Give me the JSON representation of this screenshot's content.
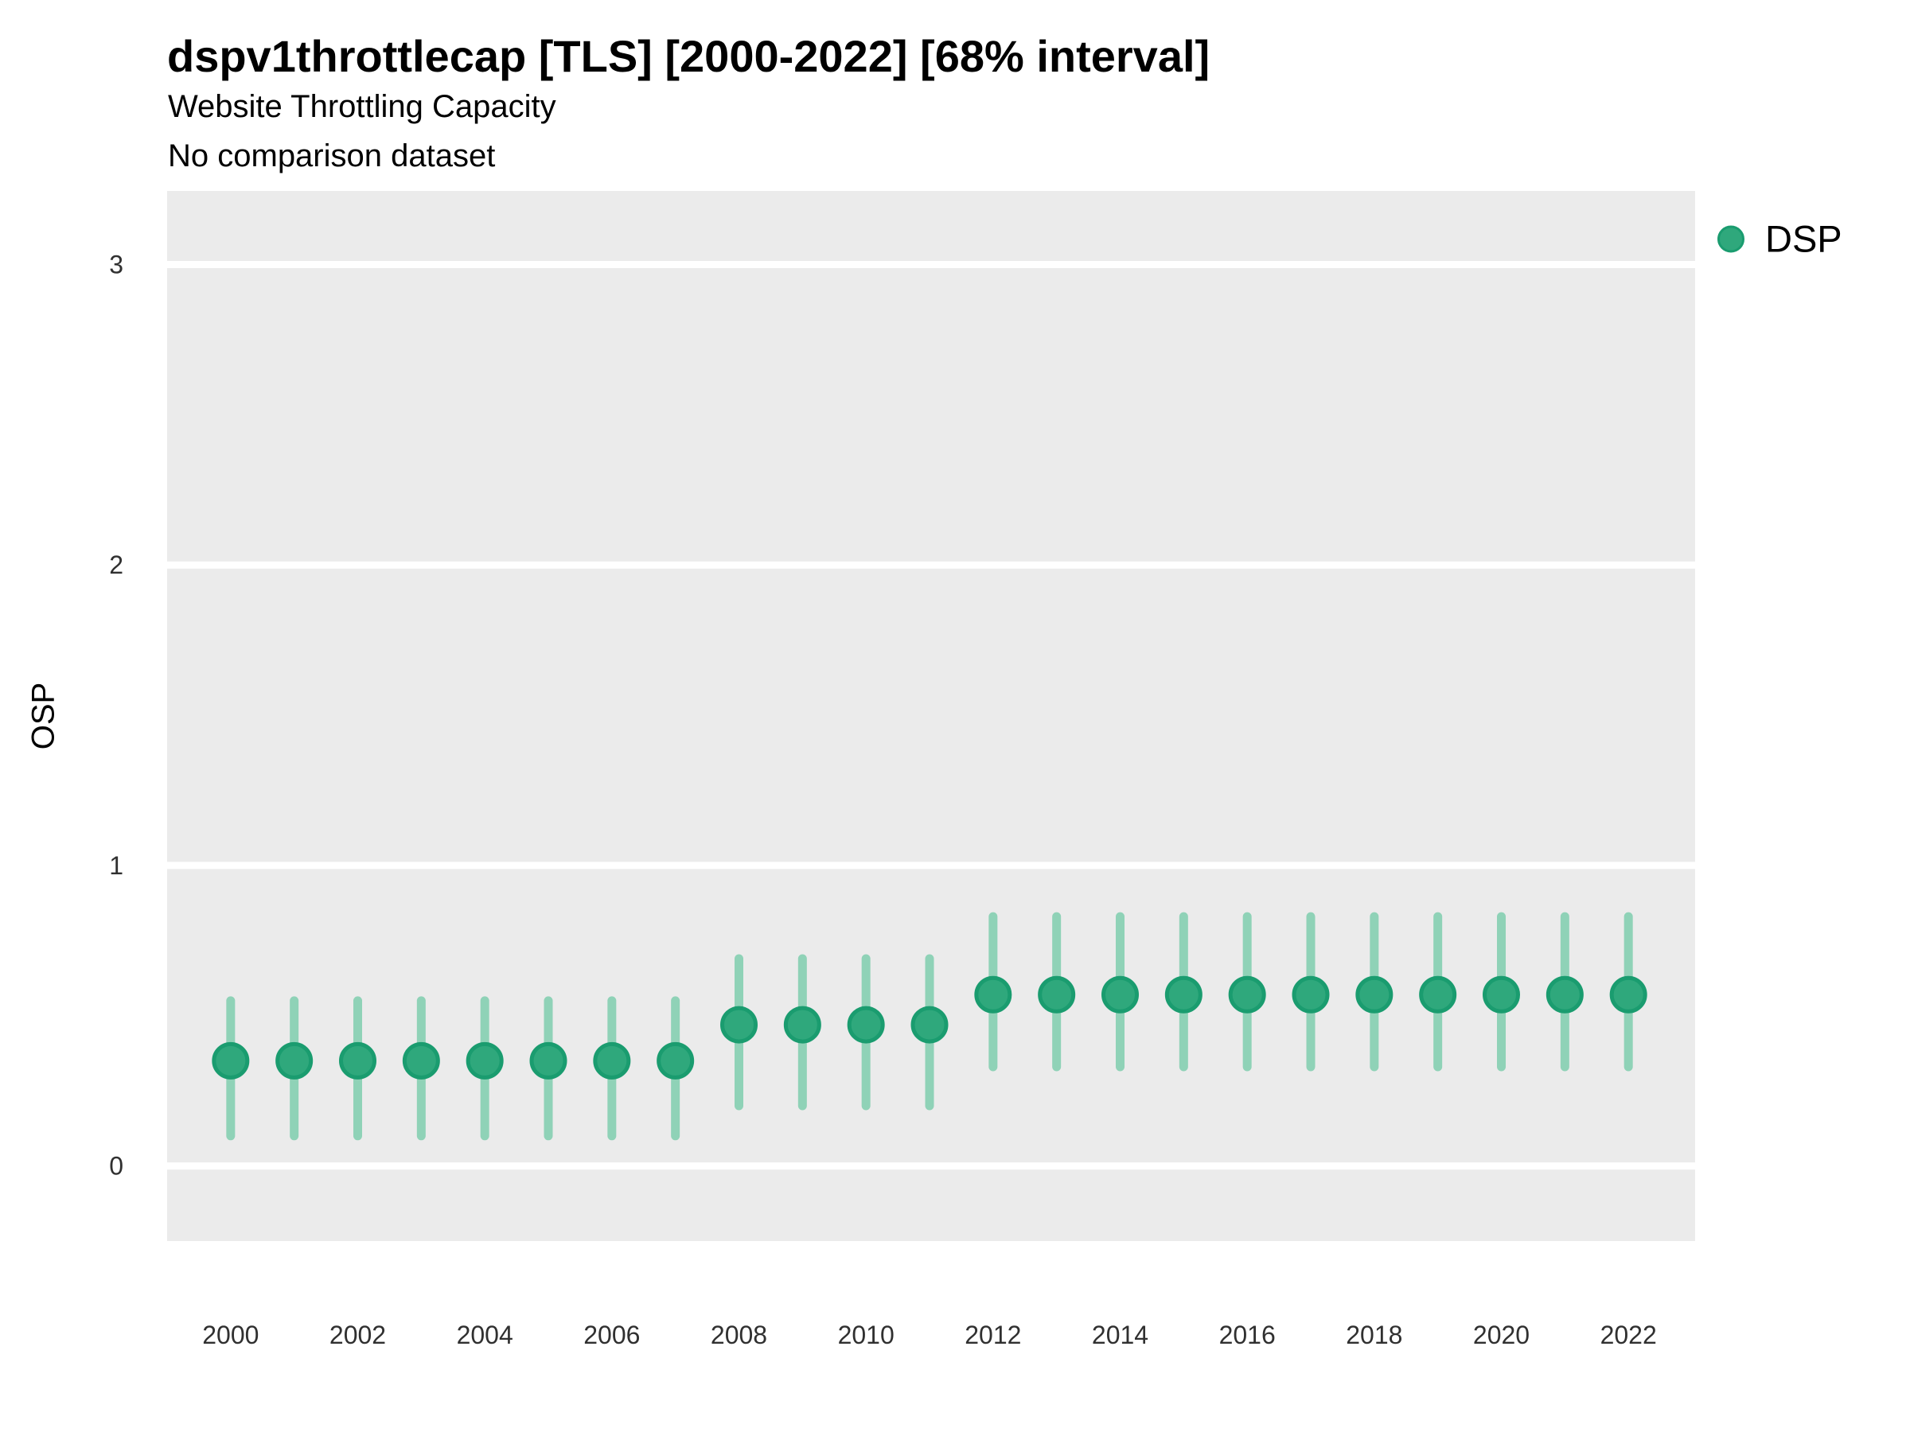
{
  "header": {
    "title": "dspv1throttlecap [TLS] [2000-2022] [68% interval]",
    "subtitle": "Website Throttling Capacity",
    "caption": "No comparison dataset"
  },
  "legend": {
    "items": [
      {
        "label": "DSP",
        "color": "#2fa87c",
        "stroke": "#1a9c6f"
      }
    ]
  },
  "chart_data": {
    "type": "scatter",
    "title": "dspv1throttlecap [TLS] [2000-2022] [68% interval]",
    "subtitle": "Website Throttling Capacity",
    "caption": "No comparison dataset",
    "xlabel": "",
    "ylabel": "OSP",
    "interval": "68%",
    "legend_position": "right",
    "grid": "major horizontal white gridlines on grey panel",
    "x_ticks": [
      2000,
      2002,
      2004,
      2006,
      2008,
      2010,
      2012,
      2014,
      2016,
      2018,
      2020,
      2022
    ],
    "y_ticks": [
      0,
      1,
      2,
      3
    ],
    "xlim": [
      1999,
      2023.05
    ],
    "ylim": [
      -0.25,
      3.245
    ],
    "series": [
      {
        "name": "DSP",
        "points": [
          {
            "year": 2000,
            "value": 0.35,
            "lo": 0.1,
            "hi": 0.55
          },
          {
            "year": 2001,
            "value": 0.35,
            "lo": 0.1,
            "hi": 0.55
          },
          {
            "year": 2002,
            "value": 0.35,
            "lo": 0.1,
            "hi": 0.55
          },
          {
            "year": 2003,
            "value": 0.35,
            "lo": 0.1,
            "hi": 0.55
          },
          {
            "year": 2004,
            "value": 0.35,
            "lo": 0.1,
            "hi": 0.55
          },
          {
            "year": 2005,
            "value": 0.35,
            "lo": 0.1,
            "hi": 0.55
          },
          {
            "year": 2006,
            "value": 0.35,
            "lo": 0.1,
            "hi": 0.55
          },
          {
            "year": 2007,
            "value": 0.35,
            "lo": 0.1,
            "hi": 0.55
          },
          {
            "year": 2008,
            "value": 0.47,
            "lo": 0.2,
            "hi": 0.69
          },
          {
            "year": 2009,
            "value": 0.47,
            "lo": 0.2,
            "hi": 0.69
          },
          {
            "year": 2010,
            "value": 0.47,
            "lo": 0.2,
            "hi": 0.69
          },
          {
            "year": 2011,
            "value": 0.47,
            "lo": 0.2,
            "hi": 0.69
          },
          {
            "year": 2012,
            "value": 0.57,
            "lo": 0.33,
            "hi": 0.83
          },
          {
            "year": 2013,
            "value": 0.57,
            "lo": 0.33,
            "hi": 0.83
          },
          {
            "year": 2014,
            "value": 0.57,
            "lo": 0.33,
            "hi": 0.83
          },
          {
            "year": 2015,
            "value": 0.57,
            "lo": 0.33,
            "hi": 0.83
          },
          {
            "year": 2016,
            "value": 0.57,
            "lo": 0.33,
            "hi": 0.83
          },
          {
            "year": 2017,
            "value": 0.57,
            "lo": 0.33,
            "hi": 0.83
          },
          {
            "year": 2018,
            "value": 0.57,
            "lo": 0.33,
            "hi": 0.83
          },
          {
            "year": 2019,
            "value": 0.57,
            "lo": 0.33,
            "hi": 0.83
          },
          {
            "year": 2020,
            "value": 0.57,
            "lo": 0.33,
            "hi": 0.83
          },
          {
            "year": 2021,
            "value": 0.57,
            "lo": 0.33,
            "hi": 0.83
          },
          {
            "year": 2022,
            "value": 0.57,
            "lo": 0.33,
            "hi": 0.83
          }
        ]
      }
    ],
    "colors": {
      "point_fill": "#2fa87c",
      "point_stroke": "#1a9c6f",
      "interval_bar": "#8fd2b7",
      "panel_background": "#ebebeb",
      "gridline": "#ffffff",
      "tick_text": "#303030",
      "text": "#000000"
    }
  }
}
